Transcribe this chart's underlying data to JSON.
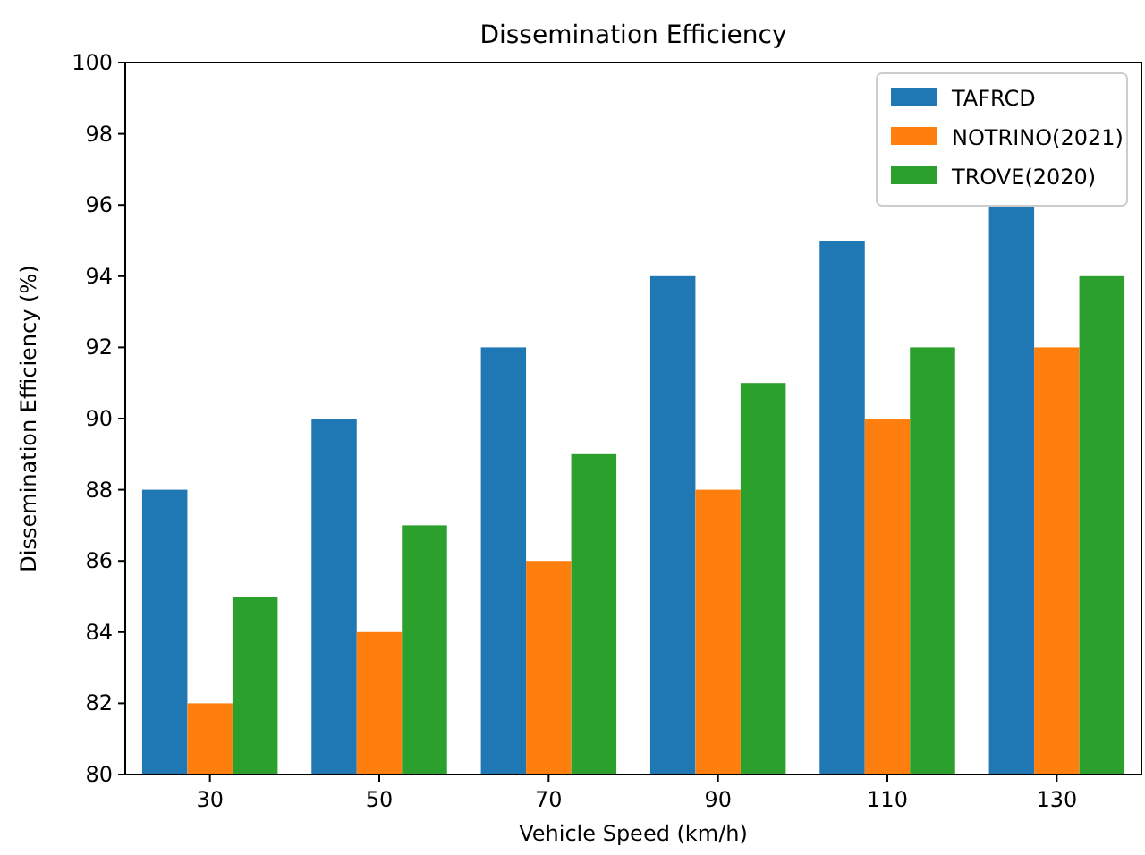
{
  "chart_data": {
    "type": "bar",
    "title": "Dissemination Efficiency",
    "xlabel": "Vehicle Speed (km/h)",
    "ylabel": "Dissemination Efficiency (%)",
    "categories": [
      "30",
      "50",
      "70",
      "90",
      "110",
      "130"
    ],
    "series": [
      {
        "name": "TAFRCD",
        "color": "#1f77b4",
        "values": [
          88,
          90,
          92,
          94,
          95,
          96
        ]
      },
      {
        "name": "NOTRINO(2021)",
        "color": "#ff7f0e",
        "values": [
          82,
          84,
          86,
          88,
          90,
          92
        ]
      },
      {
        "name": "TROVE(2020)",
        "color": "#2ca02c",
        "values": [
          85,
          87,
          89,
          91,
          92,
          94
        ]
      }
    ],
    "ylim": [
      80,
      100
    ],
    "yticks": [
      80,
      82,
      84,
      86,
      88,
      90,
      92,
      94,
      96,
      98,
      100
    ],
    "grid": false,
    "legend": "top right"
  }
}
